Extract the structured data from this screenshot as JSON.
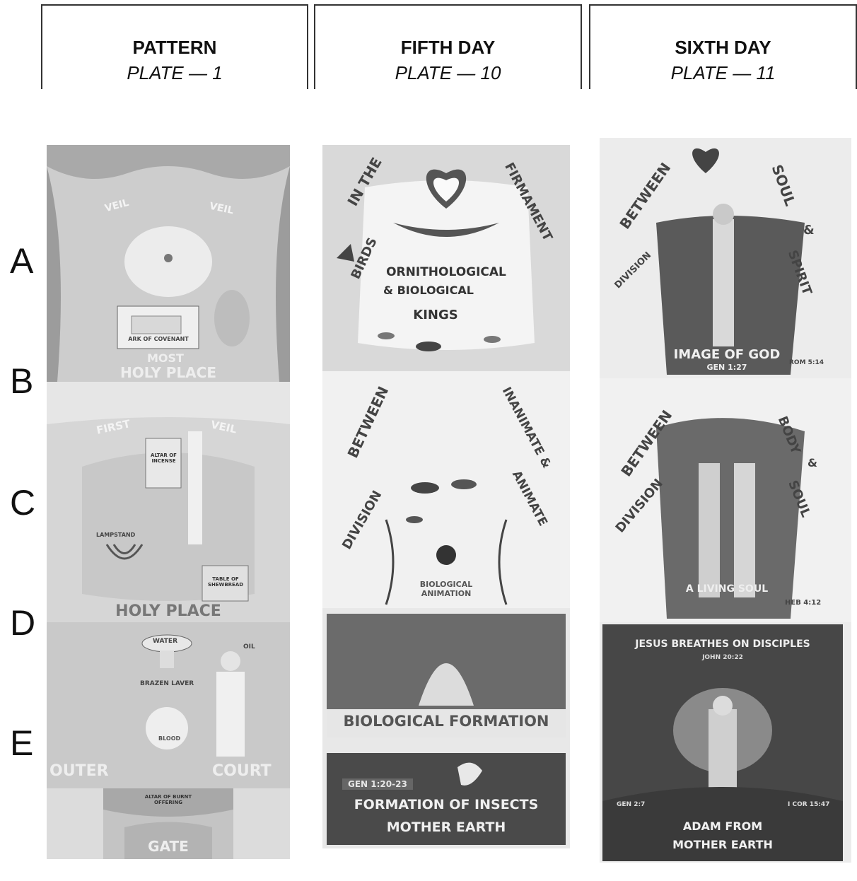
{
  "columns": [
    {
      "title": "PATTERN",
      "plate": "PLATE — 1"
    },
    {
      "title": "FIFTH DAY",
      "plate": "PLATE — 10"
    },
    {
      "title": "SIXTH DAY",
      "plate": "PLATE — 11"
    }
  ],
  "row_labels": [
    "A",
    "B",
    "C",
    "D",
    "E"
  ],
  "pattern_panels": {
    "veil_left": "VEIL",
    "veil_right": "VEIL",
    "ark": "ARK OF COVENANT",
    "most_holy": "MOST",
    "holy_place_top": "HOLY PLACE",
    "first": "FIRST",
    "veil2": "VEIL",
    "altar": "ALTAR OF INCENSE",
    "lampstand": "LAMPSTAND",
    "table": "TABLE OF SHEWBREAD",
    "holy_place": "HOLY PLACE",
    "water": "WATER",
    "laver": "BRAZEN LAVER",
    "blood": "BLOOD",
    "oil": "OIL",
    "outer": "OUTER",
    "court": "COURT",
    "gate_top": "ALTAR OF BURNT OFFERING",
    "gate": "GATE"
  },
  "fifth_day": {
    "in_the": "IN THE",
    "birds": "BIRDS",
    "firmament": "FIRMAMENT",
    "line1": "ORNITHOLOGICAL",
    "line2": "& BIOLOGICAL",
    "line3": "KINGS",
    "between": "BETWEEN",
    "division": "DIVISION",
    "inanimate": "INANIMATE &",
    "animate": "ANIMATE",
    "bio_anim": "BIOLOGICAL ANIMATION",
    "bio_form": "BIOLOGICAL FORMATION",
    "gen_ref": "GEN 1:20-23",
    "insects": "FORMATION OF INSECTS",
    "mother": "MOTHER EARTH"
  },
  "sixth_day": {
    "between": "BETWEEN",
    "soul": "SOUL",
    "amp": "&",
    "spirit": "SPIRIT",
    "division": "DIVISION",
    "image": "IMAGE OF GOD",
    "gen127": "GEN 1:27",
    "rom": "ROM 5:14",
    "between2": "BETWEEN",
    "body": "BODY",
    "amp2": "&",
    "soul2": "SOUL",
    "division2": "DIVISION",
    "living": "A LIVING SOUL",
    "heb": "HEB 4:12",
    "jesus": "JESUS BREATHES ON DISCIPLES",
    "john": "JOHN 20:22",
    "gen27": "GEN 2:7",
    "cor": "I COR 15:47",
    "adam": "ADAM FROM",
    "mother2": "MOTHER EARTH"
  }
}
